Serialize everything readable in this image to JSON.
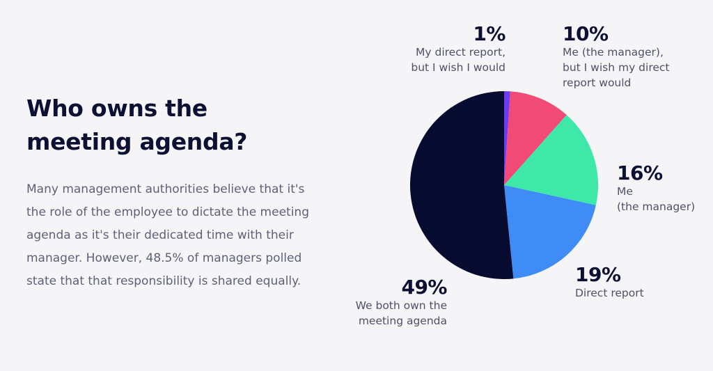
{
  "heading": {
    "lines": [
      "Who owns the",
      "meeting agenda?"
    ]
  },
  "description": {
    "lines": [
      "Many management authorities believe that it's",
      "the role of the employee to dictate the meeting",
      "agenda as it's their dedicated time with their",
      "manager. However, 48.5% of managers polled",
      "state that that responsibility is shared equally."
    ]
  },
  "colors": {
    "background": "#f5f5f7",
    "heading": "#0c1133"
  },
  "chart_data": {
    "type": "pie",
    "start": "top, clockwise",
    "slices": [
      {
        "pct_label": "1%",
        "value": 1,
        "color": "#6a3df2",
        "label_lines": [
          "My direct report,",
          "but I wish I would"
        ]
      },
      {
        "pct_label": "10%",
        "value": 10,
        "color": "#f24a76",
        "label_lines": [
          "Me (the manager),",
          "but I wish my direct",
          "report would"
        ]
      },
      {
        "pct_label": "16%",
        "value": 16,
        "color": "#3ee8a8",
        "label_lines": [
          "Me",
          "(the manager)"
        ]
      },
      {
        "pct_label": "19%",
        "value": 19,
        "color": "#3f8cf6",
        "label_lines": [
          "Direct report"
        ]
      },
      {
        "pct_label": "49%",
        "value": 49,
        "color": "#070b30",
        "label_lines": [
          "We both own the",
          "meeting agenda"
        ]
      }
    ]
  }
}
